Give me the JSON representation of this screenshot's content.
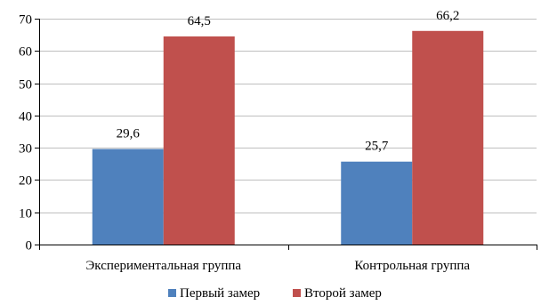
{
  "chart_data": {
    "type": "bar",
    "title": "",
    "xlabel": "",
    "ylabel": "",
    "categories": [
      "Экспериментальная группа",
      "Контрольная группа"
    ],
    "series": [
      {
        "name": "Первый замер",
        "values": [
          29.6,
          25.7
        ],
        "labels": [
          "29,6",
          "25,7"
        ],
        "color": "#4F81BD"
      },
      {
        "name": "Второй замер",
        "values": [
          64.5,
          66.2
        ],
        "labels": [
          "64,5",
          "66,2"
        ],
        "color": "#C0504D"
      }
    ],
    "ylim": [
      0,
      70
    ],
    "yticks": [
      0,
      10,
      20,
      30,
      40,
      50,
      60,
      70
    ],
    "grid": true,
    "legend": "bottom"
  }
}
